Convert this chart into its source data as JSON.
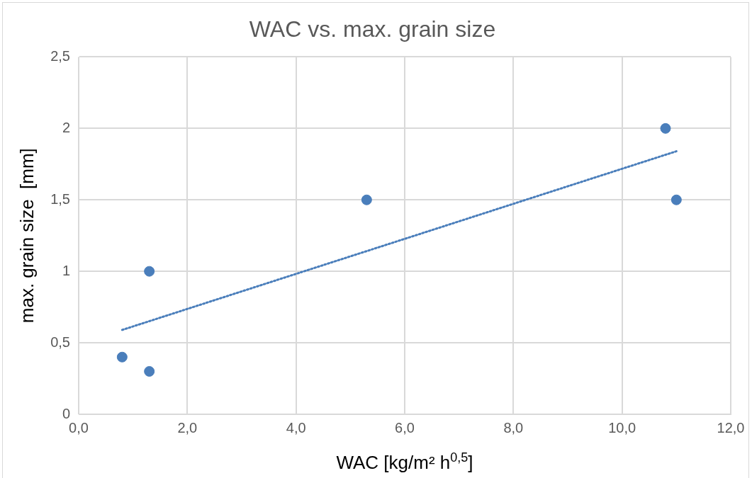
{
  "chart_data": {
    "type": "scatter",
    "title": "WAC vs. max. grain size",
    "xlabel": "WAC [kg/m² h$^{0,5}$]",
    "ylabel": "max. grain size  [mm]",
    "series": [
      {
        "color": "#4a7ebb",
        "x": [
          0.8,
          1.3,
          1.3,
          5.3,
          10.8,
          11.0
        ],
        "values": [
          0.4,
          1.0,
          0.3,
          1.5,
          2.0,
          1.5
        ],
        "marker": "circle"
      },
      {
        "type": "line",
        "color": "#4a7ebb",
        "x": [
          0.8,
          11.0
        ],
        "values": [
          0.59,
          1.84
        ],
        "marker": "none",
        "line_style": "dotted"
      }
    ],
    "xlim": [
      0,
      12
    ],
    "xticks": [
      {
        "value": 0,
        "label": "0,0"
      },
      {
        "value": 2,
        "label": "2,0"
      },
      {
        "value": 4,
        "label": "4,0"
      },
      {
        "value": 6,
        "label": "6,0"
      },
      {
        "value": 8,
        "label": "8,0"
      },
      {
        "value": 10,
        "label": "10,0"
      },
      {
        "value": 12,
        "label": "12,0"
      }
    ],
    "ylim": [
      0,
      2.5
    ],
    "yticks": [
      0,
      {
        "value": 0.5,
        "label": "0,5"
      },
      1,
      {
        "value": 1.5,
        "label": "1,5"
      },
      2,
      {
        "value": 2.5,
        "label": "2,5"
      }
    ],
    "grid": true,
    "legend": false
  }
}
